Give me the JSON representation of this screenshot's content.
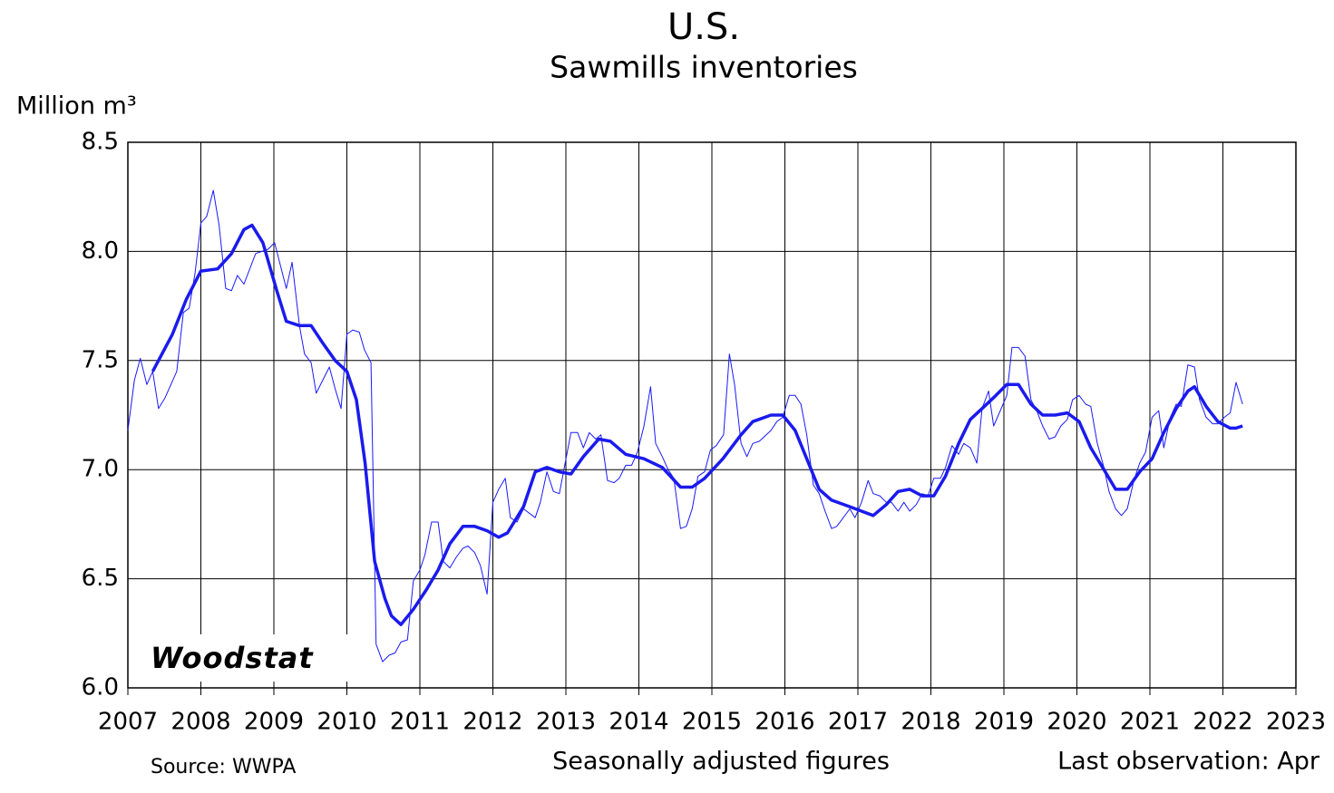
{
  "chart_data": {
    "type": "line",
    "title": "U.S.",
    "subtitle": "Sawmills inventories",
    "y_label": "Million m³",
    "source": "Source: WWPA",
    "note": "Seasonally adjusted figures",
    "last_observation": "Last observation: Apr",
    "watermark": "Woodstat",
    "xlim": [
      2007,
      2023
    ],
    "xticks": [
      2007,
      2008,
      2009,
      2010,
      2011,
      2012,
      2013,
      2014,
      2015,
      2016,
      2017,
      2018,
      2019,
      2020,
      2021,
      2022,
      2023
    ],
    "ylim": [
      6,
      8.5
    ],
    "yticks": [
      {
        "value": 6,
        "label": "6.0"
      },
      6.5,
      {
        "value": 7,
        "label": "7.0"
      },
      7.5,
      {
        "value": 8,
        "label": "8.0"
      },
      8.5
    ],
    "grid": true,
    "series": [
      {
        "color": "#1a1aff",
        "width": 1,
        "x": [
          2007.0,
          2007.09,
          2007.17,
          2007.26,
          2007.34,
          2007.42,
          2007.51,
          2007.67,
          2007.76,
          2007.84,
          2007.92,
          2008.0,
          2008.08,
          2008.17,
          2008.25,
          2008.34,
          2008.42,
          2008.5,
          2008.59,
          2008.75,
          2008.92,
          2009.01,
          2009.17,
          2009.25,
          2009.35,
          2009.42,
          2009.51,
          2009.58,
          2009.67,
          2009.76,
          2009.84,
          2009.92,
          2010.0,
          2010.08,
          2010.17,
          2010.24,
          2010.33,
          2010.4,
          2010.49,
          2010.58,
          2010.66,
          2010.74,
          2010.83,
          2010.91,
          2011.0,
          2011.07,
          2011.16,
          2011.25,
          2011.32,
          2011.41,
          2011.5,
          2011.59,
          2011.66,
          2011.75,
          2011.83,
          2011.92,
          2012.0,
          2012.08,
          2012.17,
          2012.24,
          2012.33,
          2012.42,
          2012.58,
          2012.65,
          2012.74,
          2012.83,
          2012.91,
          2012.99,
          2013.07,
          2013.16,
          2013.24,
          2013.32,
          2013.41,
          2013.48,
          2013.57,
          2013.66,
          2013.73,
          2013.82,
          2013.9,
          2013.98,
          2014.07,
          2014.16,
          2014.23,
          2014.32,
          2014.4,
          2014.48,
          2014.57,
          2014.65,
          2014.73,
          2014.81,
          2014.9,
          2014.98,
          2015.06,
          2015.16,
          2015.24,
          2015.31,
          2015.4,
          2015.48,
          2015.56,
          2015.65,
          2015.81,
          2015.89,
          2015.97,
          2016.06,
          2016.14,
          2016.22,
          2016.3,
          2016.39,
          2016.47,
          2016.55,
          2016.64,
          2016.71,
          2016.8,
          2016.89,
          2016.96,
          2017.05,
          2017.14,
          2017.21,
          2017.3,
          2017.39,
          2017.46,
          2017.55,
          2017.63,
          2017.71,
          2017.8,
          2017.88,
          2017.96,
          2018.04,
          2018.13,
          2018.2,
          2018.29,
          2018.38,
          2018.45,
          2018.54,
          2018.63,
          2018.7,
          2018.79,
          2018.86,
          2018.95,
          2019.04,
          2019.11,
          2019.2,
          2019.29,
          2019.37,
          2019.45,
          2019.53,
          2019.62,
          2019.7,
          2019.78,
          2019.87,
          2019.94,
          2020.03,
          2020.12,
          2020.19,
          2020.28,
          2020.37,
          2020.44,
          2020.53,
          2020.61,
          2020.69,
          2020.78,
          2020.86,
          2020.94,
          2021.03,
          2021.12,
          2021.19,
          2021.28,
          2021.36,
          2021.43,
          2021.52,
          2021.61,
          2021.68,
          2021.77,
          2021.86,
          2021.93,
          2022.02,
          2022.1,
          2022.18,
          2022.27
        ],
        "values": [
          7.18,
          7.41,
          7.51,
          7.39,
          7.45,
          7.28,
          7.33,
          7.45,
          7.72,
          7.74,
          7.9,
          8.13,
          8.16,
          8.28,
          8.12,
          7.83,
          7.82,
          7.89,
          7.85,
          7.99,
          8.01,
          8.04,
          7.83,
          7.95,
          7.66,
          7.53,
          7.49,
          7.35,
          7.41,
          7.47,
          7.37,
          7.28,
          7.62,
          7.64,
          7.63,
          7.55,
          7.49,
          6.2,
          6.12,
          6.15,
          6.16,
          6.21,
          6.22,
          6.49,
          6.54,
          6.61,
          6.76,
          6.76,
          6.58,
          6.55,
          6.6,
          6.64,
          6.65,
          6.62,
          6.56,
          6.43,
          6.85,
          6.91,
          6.96,
          6.78,
          6.76,
          6.82,
          6.78,
          6.85,
          6.99,
          6.9,
          6.89,
          7.03,
          7.17,
          7.17,
          7.1,
          7.17,
          7.14,
          7.16,
          6.95,
          6.94,
          6.96,
          7.02,
          7.02,
          7.08,
          7.2,
          7.38,
          7.12,
          7.06,
          7.0,
          6.96,
          6.73,
          6.74,
          6.82,
          6.97,
          6.99,
          7.09,
          7.11,
          7.16,
          7.53,
          7.39,
          7.12,
          7.06,
          7.12,
          7.13,
          7.18,
          7.22,
          7.24,
          7.34,
          7.34,
          7.3,
          7.16,
          6.93,
          6.89,
          6.81,
          6.73,
          6.74,
          6.78,
          6.82,
          6.78,
          6.85,
          6.95,
          6.89,
          6.88,
          6.85,
          6.85,
          6.81,
          6.85,
          6.81,
          6.84,
          6.89,
          6.88,
          6.96,
          6.96,
          7.01,
          7.11,
          7.07,
          7.12,
          7.1,
          7.03,
          7.28,
          7.36,
          7.2,
          7.27,
          7.34,
          7.56,
          7.56,
          7.52,
          7.32,
          7.27,
          7.2,
          7.14,
          7.15,
          7.2,
          7.23,
          7.32,
          7.34,
          7.3,
          7.29,
          7.12,
          7.01,
          6.9,
          6.82,
          6.79,
          6.82,
          6.95,
          7.03,
          7.08,
          7.24,
          7.27,
          7.1,
          7.24,
          7.3,
          7.29,
          7.48,
          7.47,
          7.32,
          7.24,
          7.21,
          7.21,
          7.24,
          7.26,
          7.4,
          7.3
        ]
      },
      {
        "color": "#1a1aee",
        "width": 3.5,
        "x": [
          2007.34,
          2007.61,
          2007.8,
          2008.0,
          2008.23,
          2008.42,
          2008.59,
          2008.7,
          2008.85,
          2009.04,
          2009.17,
          2009.35,
          2009.51,
          2009.67,
          2009.84,
          2010.0,
          2010.13,
          2010.25,
          2010.38,
          2010.52,
          2010.61,
          2010.74,
          2010.91,
          2011.09,
          2011.25,
          2011.41,
          2011.59,
          2011.75,
          2011.92,
          2012.08,
          2012.2,
          2012.42,
          2012.58,
          2012.74,
          2012.91,
          2013.07,
          2013.24,
          2013.45,
          2013.61,
          2013.82,
          2014.07,
          2014.32,
          2014.57,
          2014.73,
          2014.9,
          2015.15,
          2015.4,
          2015.56,
          2015.81,
          2015.97,
          2016.14,
          2016.3,
          2016.47,
          2016.64,
          2016.89,
          2017.05,
          2017.21,
          2017.39,
          2017.55,
          2017.71,
          2017.88,
          2018.04,
          2018.2,
          2018.38,
          2018.54,
          2018.7,
          2018.86,
          2019.04,
          2019.2,
          2019.37,
          2019.53,
          2019.7,
          2019.87,
          2020.03,
          2020.19,
          2020.37,
          2020.53,
          2020.69,
          2020.86,
          2021.03,
          2021.19,
          2021.36,
          2021.52,
          2021.61,
          2021.77,
          2021.93,
          2022.1,
          2022.18,
          2022.27
        ],
        "values": [
          7.45,
          7.62,
          7.78,
          7.91,
          7.92,
          7.99,
          8.1,
          8.12,
          8.04,
          7.82,
          7.68,
          7.66,
          7.66,
          7.58,
          7.5,
          7.45,
          7.32,
          7.03,
          6.58,
          6.41,
          6.33,
          6.29,
          6.36,
          6.45,
          6.54,
          6.66,
          6.74,
          6.74,
          6.72,
          6.69,
          6.71,
          6.83,
          6.99,
          7.01,
          6.99,
          6.98,
          7.06,
          7.14,
          7.13,
          7.07,
          7.05,
          7.01,
          6.92,
          6.92,
          6.96,
          7.05,
          7.16,
          7.22,
          7.25,
          7.25,
          7.18,
          7.05,
          6.91,
          6.86,
          6.83,
          6.81,
          6.79,
          6.84,
          6.9,
          6.91,
          6.88,
          6.88,
          6.97,
          7.12,
          7.23,
          7.28,
          7.33,
          7.39,
          7.39,
          7.3,
          7.25,
          7.25,
          7.26,
          7.22,
          7.1,
          7.0,
          6.91,
          6.91,
          6.99,
          7.05,
          7.17,
          7.28,
          7.36,
          7.38,
          7.29,
          7.22,
          7.19,
          7.19,
          7.2
        ]
      }
    ]
  }
}
